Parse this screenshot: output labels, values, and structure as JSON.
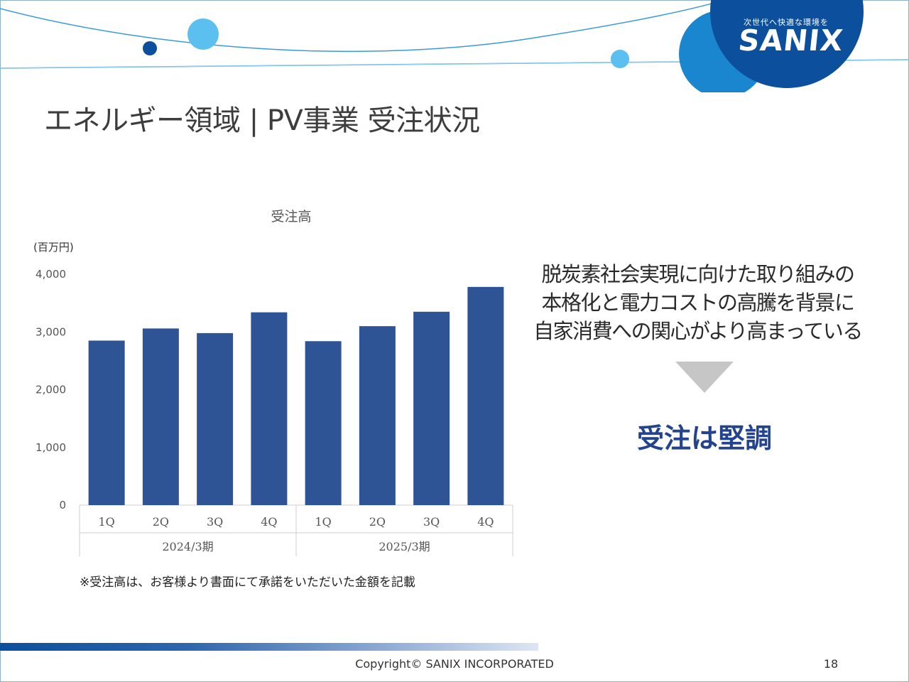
{
  "logo": {
    "tagline": "次世代へ快適な環境を",
    "name": "SANIX"
  },
  "title": "エネルギー領域 | PV事業 受注状況",
  "chart_data": {
    "type": "bar",
    "title": "受注高",
    "unit": "(百万円)",
    "ylim": [
      0,
      4000
    ],
    "yticks": [
      0,
      1000,
      2000,
      3000,
      4000
    ],
    "ytick_labels": [
      "0",
      "1,000",
      "2,000",
      "3,000",
      "4,000"
    ],
    "groups": [
      {
        "label": "2024/3期",
        "categories": [
          "1Q",
          "2Q",
          "3Q",
          "4Q"
        ],
        "values": [
          2850,
          3060,
          2980,
          3340
        ]
      },
      {
        "label": "2025/3期",
        "categories": [
          "1Q",
          "2Q",
          "3Q",
          "4Q"
        ],
        "values": [
          2840,
          3100,
          3350,
          3780
        ]
      }
    ],
    "color": "#2e5496",
    "grid": false,
    "legend": "none"
  },
  "note": "※受注高は、お客様より書面にて承諾をいただいた金額を記載",
  "message": {
    "lines": [
      "脱炭素社会実現に向けた取り組みの",
      "本格化と電力コストの高騰を背景に",
      "自家消費への関心がより高まっている"
    ],
    "conclusion": "受注は堅調"
  },
  "footer": {
    "copyright": "Copyright©  SANIX INCORPORATED",
    "page": "18"
  }
}
